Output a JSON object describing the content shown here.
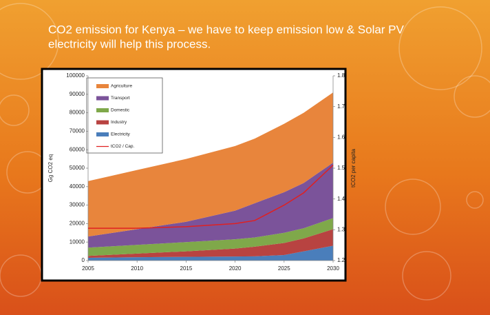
{
  "slide_title": "CO2 emission for Kenya – we have to keep emission low & Solar PV electricity will help this process.",
  "chart_data": {
    "type": "stacked_area",
    "x": [
      2005,
      2010,
      2015,
      2020,
      2022,
      2025,
      2027,
      2030
    ],
    "series": [
      {
        "name": "Agriculture",
        "color": "#e8853c",
        "values": [
          30000,
          32000,
          34000,
          35000,
          35000,
          37000,
          38000,
          38000
        ]
      },
      {
        "name": "Transport",
        "color": "#7b539a",
        "values": [
          6000,
          8500,
          11000,
          15500,
          18500,
          22000,
          24500,
          30000
        ]
      },
      {
        "name": "Domestic",
        "color": "#7fa84a",
        "values": [
          4500,
          4700,
          5000,
          5000,
          5000,
          5500,
          5500,
          6000
        ]
      },
      {
        "name": "Industry",
        "color": "#b84341",
        "values": [
          1000,
          2000,
          3000,
          4300,
          5200,
          6500,
          7000,
          9000
        ]
      },
      {
        "name": "Electricity",
        "color": "#4a7ebb",
        "values": [
          1500,
          1800,
          2000,
          2200,
          2300,
          3000,
          5000,
          8000
        ]
      },
      {
        "name": "tCO2 / Cap.",
        "color": "#e02020",
        "type": "line",
        "axis": "y2",
        "values": [
          1.305,
          1.305,
          1.31,
          1.32,
          1.33,
          1.38,
          1.42,
          1.51
        ]
      }
    ],
    "ylabel": "Gg CO2 eq",
    "y2label": "tCO2 per capita",
    "xlim": [
      2005,
      2030
    ],
    "xticks": [
      2005,
      2010,
      2015,
      2020,
      2025,
      2030
    ],
    "ylim": [
      0,
      100000
    ],
    "yticks": [
      0,
      10000,
      20000,
      30000,
      40000,
      50000,
      60000,
      70000,
      80000,
      90000,
      100000
    ],
    "y2lim": [
      1.2,
      1.8
    ],
    "y2ticks": [
      1.2,
      1.3,
      1.4,
      1.5,
      1.6,
      1.7,
      1.8
    ],
    "legend": "upper left"
  }
}
